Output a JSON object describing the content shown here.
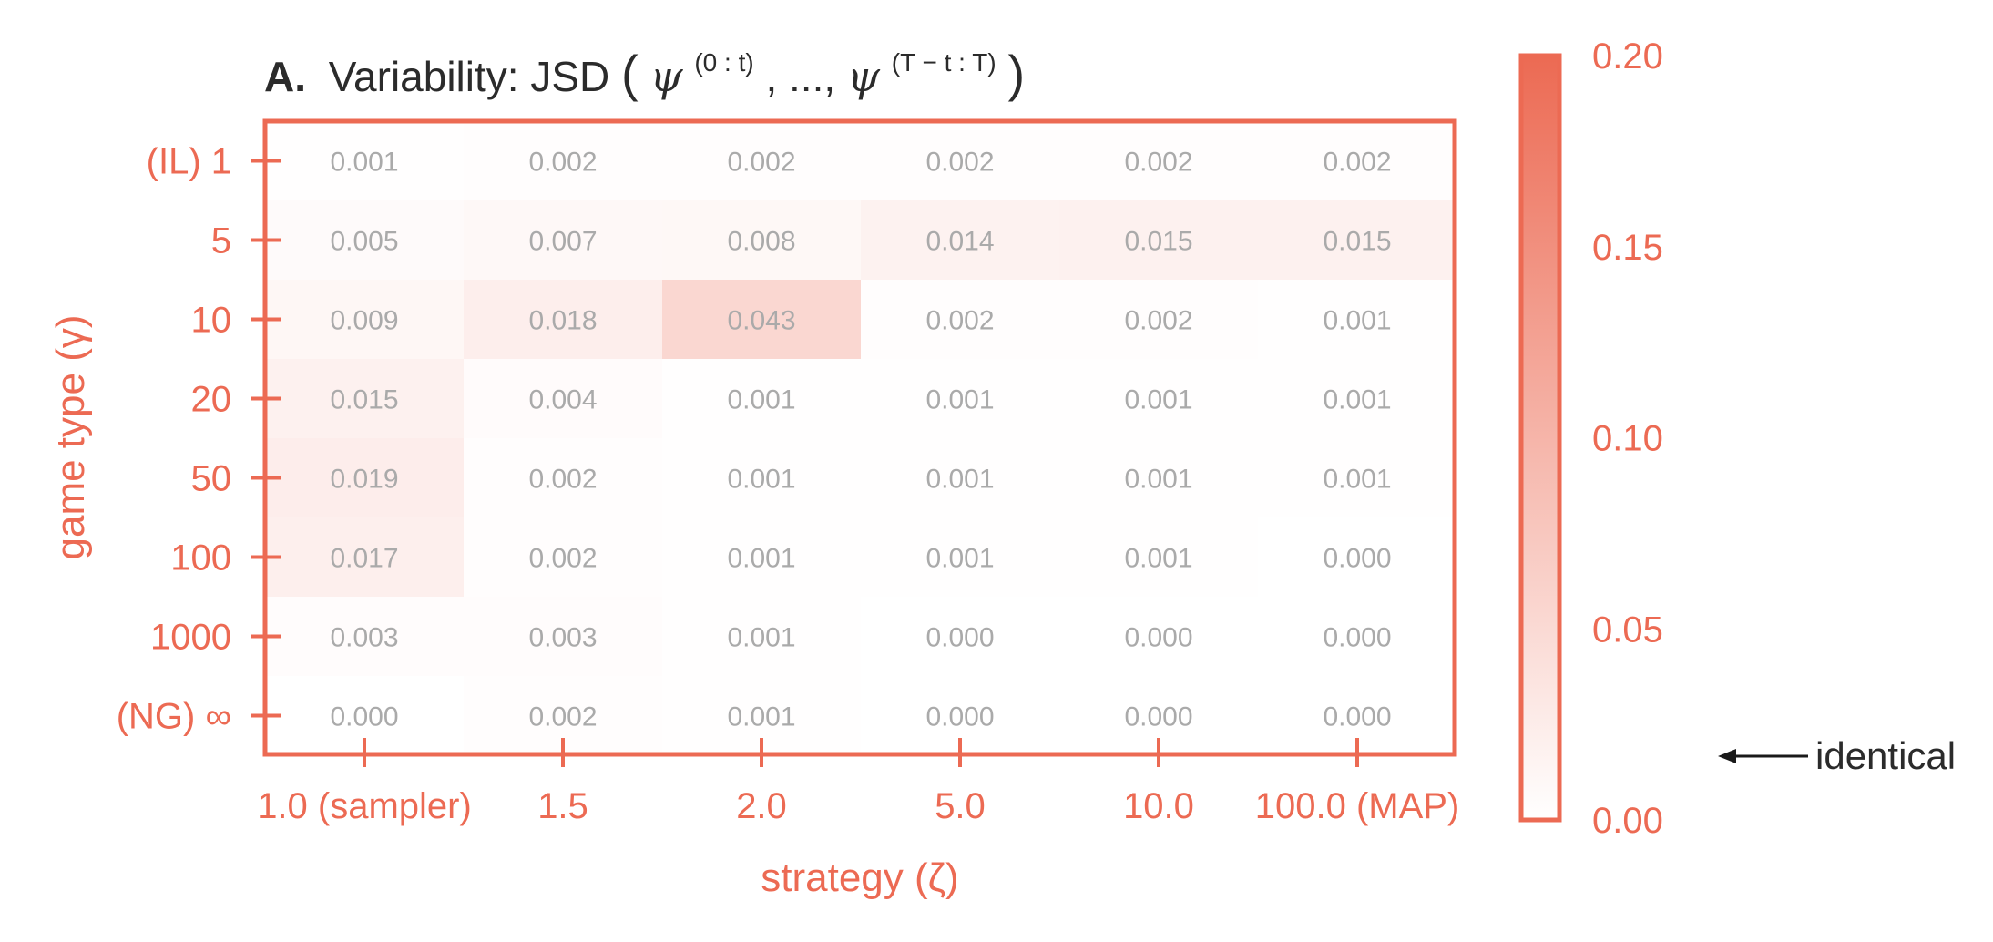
{
  "chart_data": {
    "type": "heatmap",
    "panel_label": "A.",
    "title": {
      "prefix": "Variability: JSD",
      "open": "(",
      "psi": "ψ",
      "sup1": "(0 : t)",
      "middle": ", ..., ",
      "sup2": "(T − t : T)",
      "close": ")"
    },
    "xlabel": "strategy (ζ)",
    "ylabel": "game type (γ)",
    "x_categories": [
      "1.0 (sampler)",
      "1.5",
      "2.0",
      "5.0",
      "10.0",
      "100.0 (MAP)"
    ],
    "y_categories": [
      "(IL) 1",
      "5",
      "10",
      "20",
      "50",
      "100",
      "1000",
      "(NG) ∞"
    ],
    "values": [
      [
        0.001,
        0.002,
        0.002,
        0.002,
        0.002,
        0.002
      ],
      [
        0.005,
        0.007,
        0.008,
        0.014,
        0.015,
        0.015
      ],
      [
        0.009,
        0.018,
        0.043,
        0.002,
        0.002,
        0.001
      ],
      [
        0.015,
        0.004,
        0.001,
        0.001,
        0.001,
        0.001
      ],
      [
        0.019,
        0.002,
        0.001,
        0.001,
        0.001,
        0.001
      ],
      [
        0.017,
        0.002,
        0.001,
        0.001,
        0.001,
        0.0
      ],
      [
        0.003,
        0.003,
        0.001,
        0.0,
        0.0,
        0.0
      ],
      [
        0.0,
        0.002,
        0.001,
        0.0,
        0.0,
        0.0
      ]
    ],
    "colorbar": {
      "min": 0.0,
      "max": 0.2,
      "ticks": [
        "0.00",
        "0.05",
        "0.10",
        "0.15",
        "0.20"
      ],
      "annotation": "identical"
    },
    "colors": {
      "accent": "#ec6a53",
      "low": "#ffffff",
      "high": "#ec6a53",
      "cell_text": "#aaaaaa",
      "title_text": "#2b2b2b"
    }
  }
}
